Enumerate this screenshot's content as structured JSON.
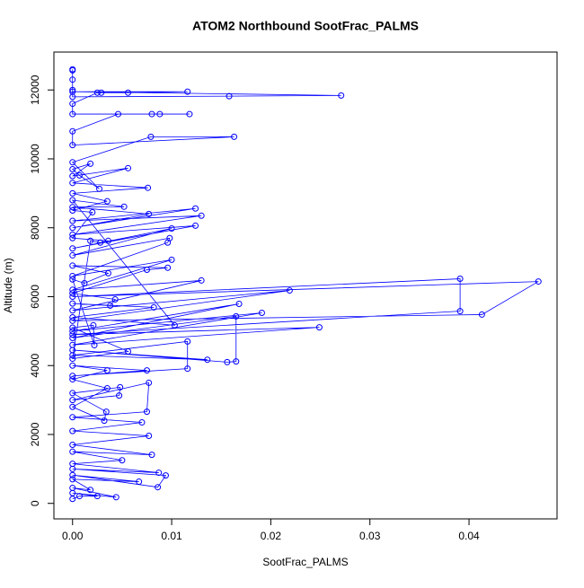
{
  "chart_data": {
    "type": "line",
    "markers": true,
    "title": "ATOM2 Northbound SootFrac_PALMS",
    "xlabel": "SootFrac_PALMS",
    "ylabel": "Altitude (m)",
    "xlim": [
      -0.00188,
      0.04888
    ],
    "ylim": [
      -450,
      13100
    ],
    "xticks": [
      {
        "value": 0,
        "label": "0.00"
      },
      {
        "value": 0.01,
        "label": "0.01"
      },
      {
        "value": 0.02,
        "label": "0.02"
      },
      {
        "value": 0.03,
        "label": "0.03"
      },
      {
        "value": 0.04,
        "label": "0.04"
      }
    ],
    "yticks": [
      0,
      2000,
      4000,
      6000,
      8000,
      10000,
      12000
    ],
    "grid": false,
    "x": [
      0,
      0.0007,
      0.0025,
      0,
      0.0044,
      0,
      0.0018,
      0,
      0.0067,
      0,
      0.0086,
      0.0094,
      0,
      0.0087,
      0,
      0.005,
      0,
      0.008,
      0,
      0.0077,
      0,
      0.007,
      0,
      0.0075,
      0.0077,
      0,
      0.0047,
      0.0048,
      0,
      0.0034,
      0.0032,
      0,
      0.0035,
      0,
      0.0035,
      0,
      0.0075,
      0,
      0.0116,
      0.0116,
      0,
      0.0136,
      0,
      0.0156,
      0.0165,
      0.0165,
      0,
      0.0168,
      0,
      0.0191,
      0,
      0.0249,
      0,
      0.0391,
      0.0391,
      0,
      0.047,
      0.0413,
      0,
      0.0219,
      0,
      0.013,
      0,
      0.01,
      0,
      0.0096,
      0.0098,
      0,
      0.01,
      0,
      0.0124,
      0,
      0.013,
      0,
      0.0124,
      0,
      0.0077,
      0,
      0.0052,
      0,
      0.0103,
      0,
      0.0082,
      0,
      0.0038,
      0.0043,
      0,
      0.0075,
      0.0096,
      0,
      0.0036,
      0.0012,
      0,
      0.0022,
      0.0021,
      0,
      0.0056,
      0,
      0.0018,
      0.0028,
      0.0036,
      0,
      0.002,
      0,
      0.0035,
      0,
      0.0076,
      0,
      0.0056,
      0,
      0.0018,
      0,
      0.0007,
      0.0027,
      0,
      0.0079,
      0.0163,
      0,
      0,
      0.0046,
      0.008,
      0.0088,
      0.0118,
      0,
      0,
      0.0025,
      0.0029,
      0.0056,
      0.0116,
      0,
      0.0271,
      0.0158,
      0,
      0,
      0,
      0,
      0
    ],
    "series": [
      {
        "color": "#0000ff",
        "values": [
          130,
          210,
          210,
          300,
          180,
          450,
          390,
          700,
          630,
          820,
          470,
          810,
          1000,
          890,
          1150,
          1250,
          1500,
          1410,
          1700,
          1960,
          2100,
          2350,
          2500,
          2660,
          3500,
          3000,
          3130,
          3370,
          3200,
          2660,
          2400,
          2800,
          3340,
          3600,
          3860,
          4000,
          3860,
          3700,
          3910,
          4700,
          4300,
          4170,
          4450,
          4100,
          4120,
          5430,
          4800,
          5790,
          5000,
          5530,
          4600,
          5110,
          4900,
          5580,
          6520,
          6000,
          6440,
          5480,
          5300,
          6180,
          5600,
          6470,
          6200,
          7070,
          6600,
          7570,
          7700,
          7200,
          7980,
          7400,
          8060,
          7800,
          8350,
          8200,
          8560,
          8000,
          8400,
          8600,
          8610,
          8800,
          5170,
          5400,
          5690,
          5800,
          5740,
          5920,
          6100,
          6780,
          6840,
          6900,
          6680,
          6390,
          6500,
          4590,
          5170,
          5100,
          4410,
          4200,
          7620,
          7570,
          7620,
          7700,
          8450,
          8500,
          8770,
          9000,
          9160,
          9300,
          9730,
          9500,
          9860,
          9700,
          9520,
          9130,
          9900,
          10640,
          10640,
          10400,
          10800,
          11300,
          11300,
          11300,
          11300,
          11300,
          11600,
          11920,
          11920,
          11920,
          11950,
          11950,
          11840,
          11820,
          11800,
          12000,
          12300,
          12570,
          12600
        ]
      }
    ]
  }
}
